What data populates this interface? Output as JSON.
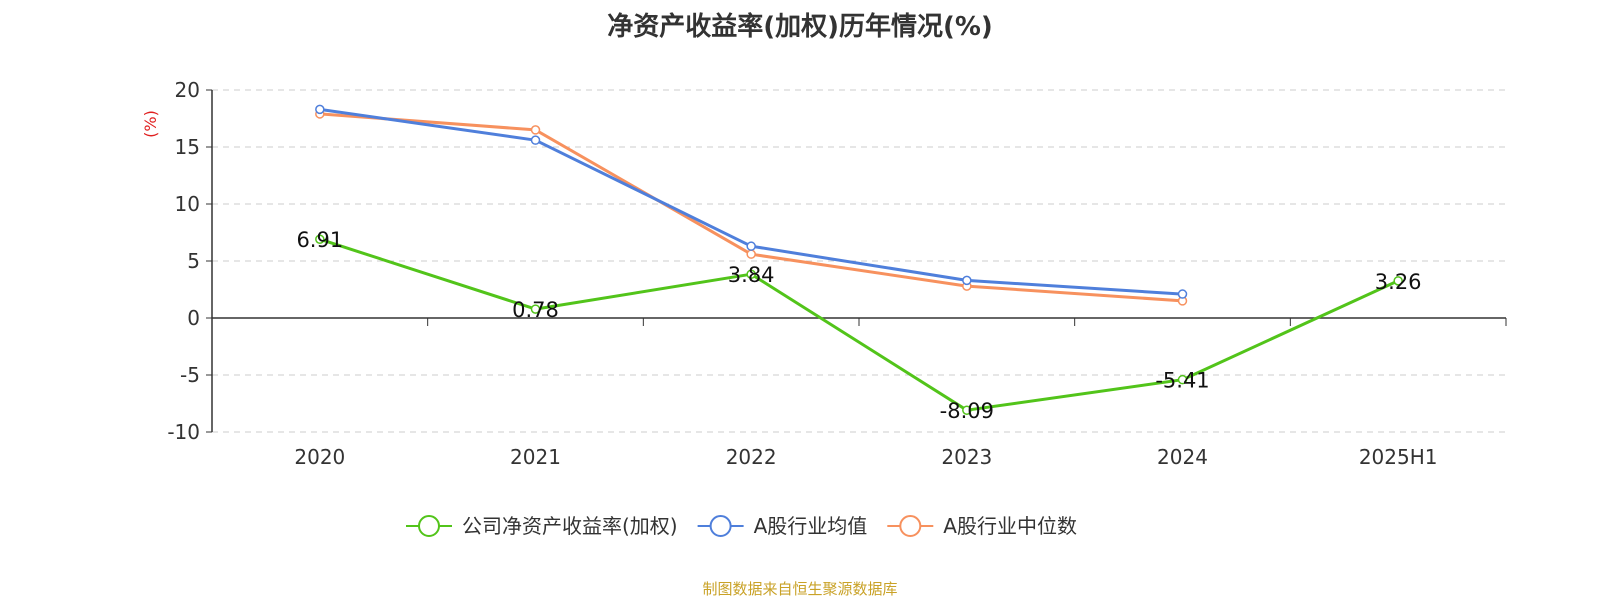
{
  "chart_data": {
    "type": "line",
    "title": "净资产收益率(加权)历年情况(%)",
    "ylabel": "(%)",
    "xlabel": "",
    "categories": [
      "2020",
      "2021",
      "2022",
      "2023",
      "2024",
      "2025H1"
    ],
    "ylim": [
      -10,
      20
    ],
    "yticks": [
      -10,
      -5,
      0,
      5,
      10,
      15,
      20
    ],
    "grid": true,
    "legend_position": "bottom",
    "series": [
      {
        "name": "公司净资产收益率(加权)",
        "color": "#52c41a",
        "values": [
          6.91,
          0.78,
          3.84,
          -8.09,
          -5.41,
          3.26
        ],
        "labels": [
          "6.91",
          "0.78",
          "3.84",
          "-8.09",
          "-5.41",
          "3.26"
        ]
      },
      {
        "name": "A股行业均值",
        "color": "#4f7fdb",
        "values": [
          18.3,
          15.6,
          6.3,
          3.3,
          2.1,
          null
        ]
      },
      {
        "name": "A股行业中位数",
        "color": "#f7915e",
        "values": [
          17.9,
          16.5,
          5.6,
          2.8,
          1.5,
          null
        ]
      }
    ]
  },
  "footer": {
    "source": "制图数据来自恒生聚源数据库"
  }
}
